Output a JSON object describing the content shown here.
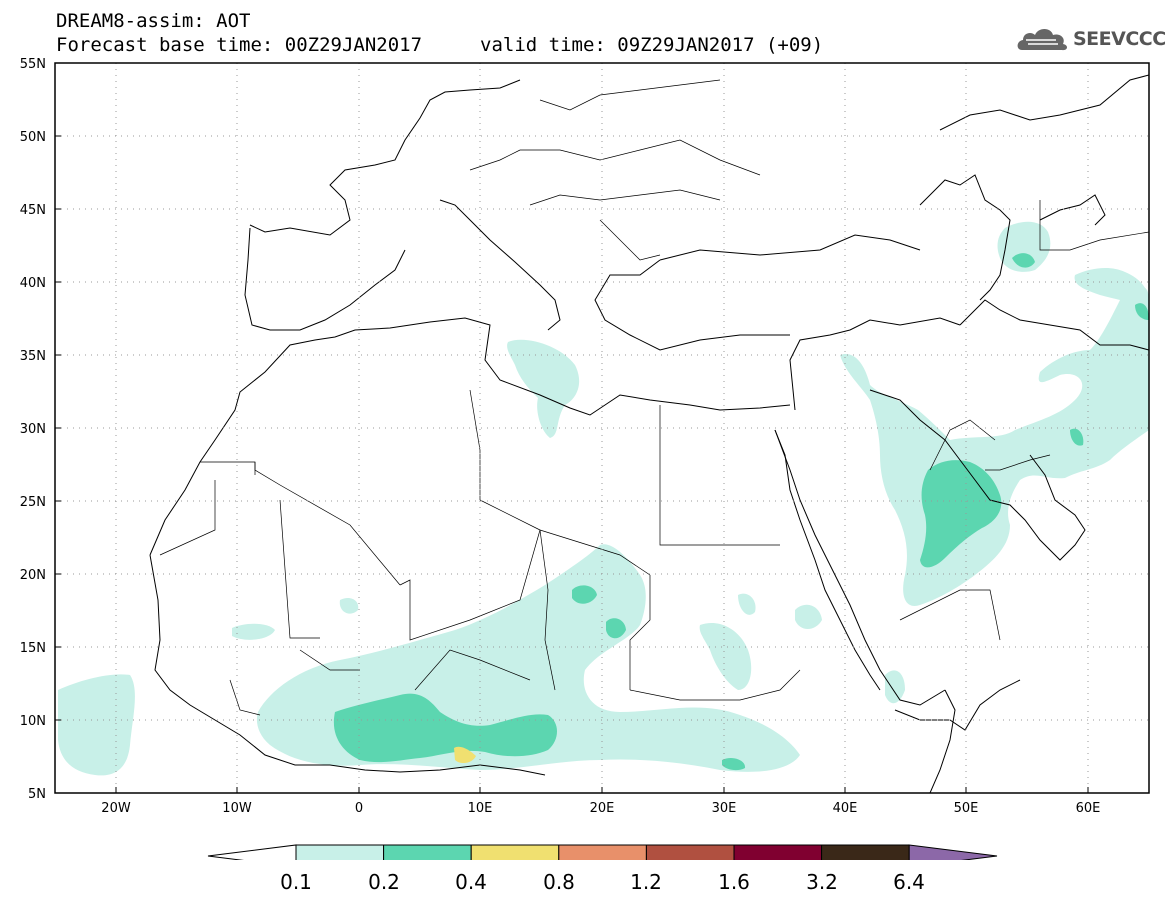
{
  "header": {
    "title": "DREAM8-assim: AOT",
    "base_time": "Forecast base time: 00Z29JAN2017",
    "valid_time": "valid time: 09Z29JAN2017 (+09)",
    "logo_text": "SEEVCCC"
  },
  "map": {
    "projection": "lat-lon",
    "lon_range": [
      -25,
      65
    ],
    "lat_range": [
      5,
      55
    ],
    "lat_labels": [
      "55N",
      "50N",
      "45N",
      "40N",
      "35N",
      "30N",
      "25N",
      "20N",
      "15N",
      "10N",
      "5N"
    ],
    "lon_labels": [
      "20W",
      "10W",
      "0",
      "10E",
      "20E",
      "30E",
      "40E",
      "50E",
      "60E"
    ],
    "grid": "dotted",
    "fields": [
      {
        "level": "0.1-0.2",
        "areas": [
          "West Africa / Sahel band",
          "Atlantic off Senegal",
          "Eastern Libya coast",
          "Sudan / Chad",
          "Arabian Peninsula and Persian Gulf",
          "Iran",
          "Caspian Sea region"
        ]
      },
      {
        "level": "0.2-0.4",
        "areas": [
          "Nigeria / Ghana",
          "Chad (small cells)",
          "Eastern Arabian Peninsula",
          "South Sudan (small cell)",
          "Caspian west shore"
        ]
      },
      {
        "level": "0.4-0.8",
        "areas": [
          "Southern Nigeria (small cell)"
        ]
      }
    ]
  },
  "colorbar": {
    "labels": [
      "0.1",
      "0.2",
      "0.4",
      "0.8",
      "1.2",
      "1.6",
      "3.2",
      "6.4"
    ],
    "colors": [
      "#ffffff",
      "#c8f0e8",
      "#5cd6b0",
      "#f0e070",
      "#e8906a",
      "#b05040",
      "#800030",
      "#3a2818",
      "#8c68a8"
    ]
  }
}
